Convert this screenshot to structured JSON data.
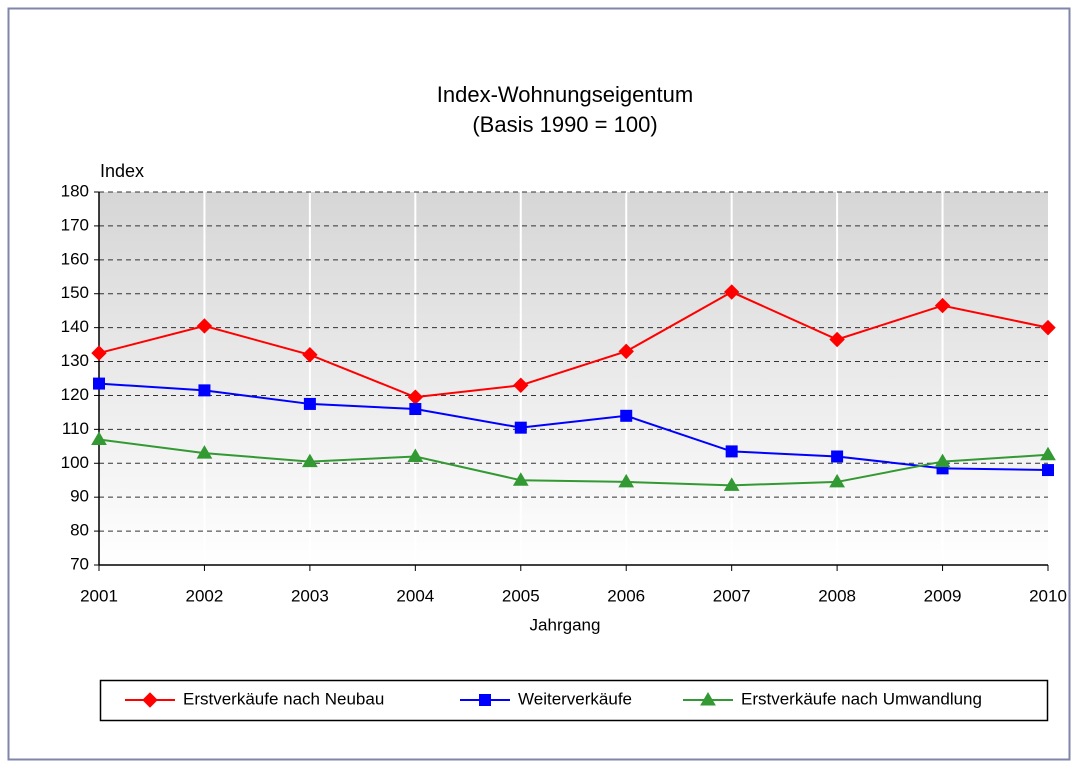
{
  "chart_data": {
    "type": "line",
    "title": "Index-Wohnungseigentum",
    "subtitle": "(Basis 1990 = 100)",
    "y_label": "Index",
    "x_label": "Jahrgang",
    "categories": [
      "2001",
      "2002",
      "2003",
      "2004",
      "2005",
      "2006",
      "2007",
      "2008",
      "2009",
      "2010"
    ],
    "series": [
      {
        "name": "Erstverkäufe nach Neubau",
        "color": "#ff0000",
        "marker": "diamond",
        "values": [
          132.5,
          140.5,
          132,
          119.5,
          123,
          133,
          150.5,
          136.5,
          146.5,
          140
        ]
      },
      {
        "name": "Weiterverkäufe",
        "color": "#0000ff",
        "marker": "square",
        "values": [
          123.5,
          121.5,
          117.5,
          116,
          110.5,
          114,
          103.5,
          102,
          98.5,
          98
        ]
      },
      {
        "name": "Erstverkäufe nach Umwandlung",
        "color": "#339933",
        "marker": "triangle",
        "values": [
          107,
          103,
          100.5,
          102,
          95,
          94.5,
          93.5,
          94.5,
          100.5,
          102.5
        ]
      }
    ],
    "ylim": [
      70,
      180
    ],
    "yticks": [
      70,
      80,
      90,
      100,
      110,
      120,
      130,
      140,
      150,
      160,
      170,
      180
    ],
    "grid": true,
    "legend": "bottom"
  }
}
